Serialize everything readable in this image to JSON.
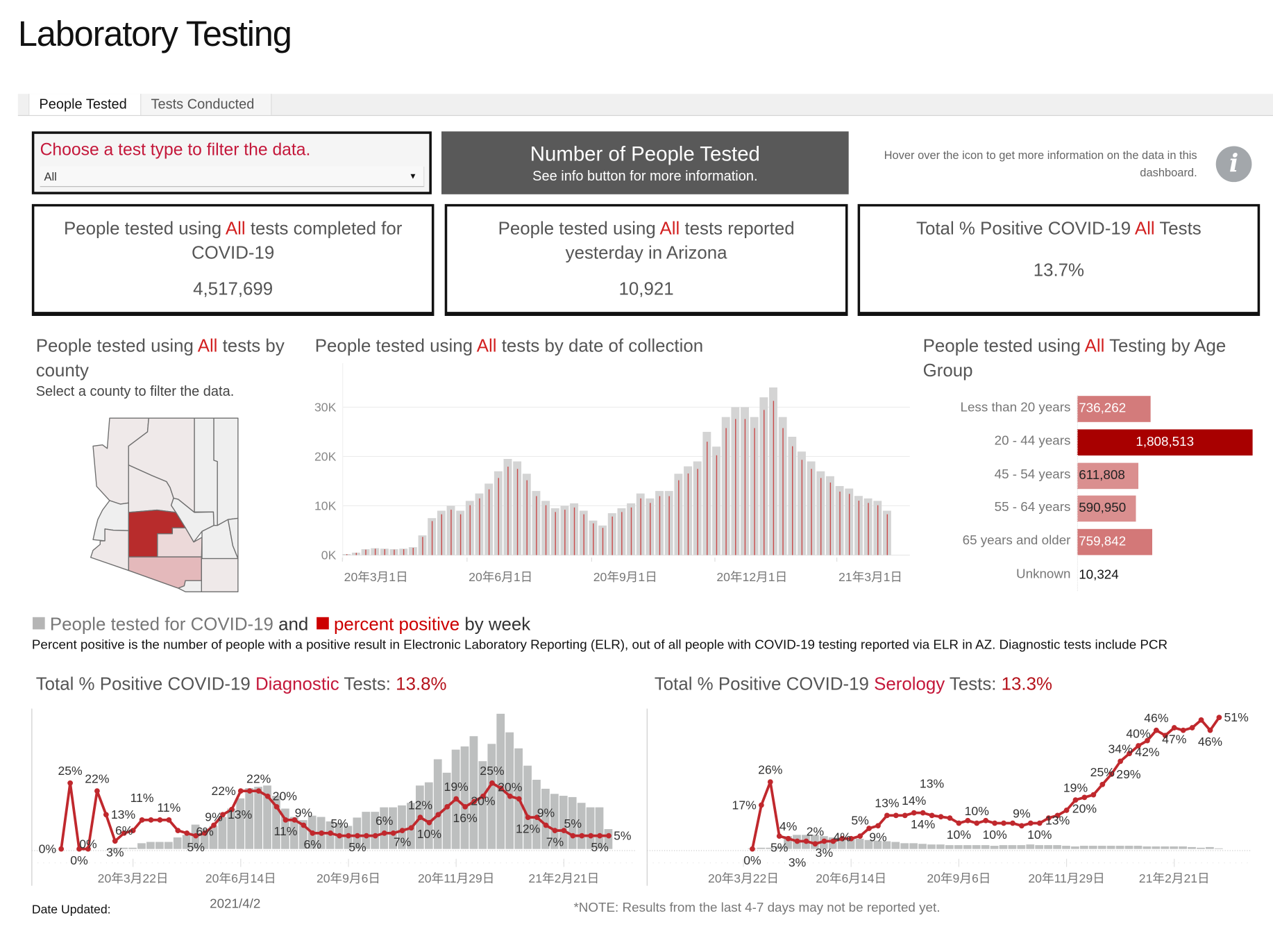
{
  "page": {
    "title": "Laboratory Testing"
  },
  "tabs": [
    {
      "label": "People Tested",
      "active": true
    },
    {
      "label": "Tests Conducted",
      "active": false
    }
  ],
  "filter": {
    "label": "Choose a test type to filter the data.",
    "value": "All"
  },
  "header_box": {
    "title": "Number of People Tested",
    "subtitle": "See info button for more information."
  },
  "info": {
    "hint": "Hover over the icon to get more information on the data in this dashboard.",
    "icon": "info-icon"
  },
  "kpis": [
    {
      "pre": "People tested using ",
      "hl": "All",
      "post": " tests completed for COVID-19",
      "value": "4,517,699"
    },
    {
      "pre": "People tested using ",
      "hl": "All",
      "post": " tests reported yesterday in Arizona",
      "value": "10,921"
    },
    {
      "pre": "Total % Positive COVID-19 ",
      "hl": "All",
      "post": " Tests",
      "value": "13.7%"
    }
  ],
  "county": {
    "pre": "People tested using ",
    "hl": "All",
    "post": " tests by county",
    "subtitle": "Select a county to filter the data.",
    "colors": {
      "Maricopa": "#b82c2c",
      "Pima": "#e4b9bb",
      "Pinal": "#ecd9d9",
      "other": "#efe9e9",
      "low": "#efefef"
    }
  },
  "daily": {
    "pre": "People tested using ",
    "hl": "All",
    "post": " tests by date of collection"
  },
  "age": {
    "pre": "People tested using ",
    "hl": "All",
    "post": " Testing by Age Group"
  },
  "weekly": {
    "legend_a": "People tested for COVID-19",
    "and": "and",
    "legend_b": "percent positive",
    "by_week": "by week",
    "description": "Percent positive is the number of people with a positive result in Electronic Laboratory Reporting (ELR), out of all people with COVID-19 testing reported via ELR in AZ. Diagnostic tests include PCR",
    "diag_title": {
      "pre": "Total % Positive COVID-19 ",
      "hl": "Diagnostic",
      "post": " Tests: ",
      "value": "13.8%"
    },
    "sero_title": {
      "pre": "Total % Positive COVID-19 ",
      "hl": "Serology",
      "post": " Tests: ",
      "value": "13.3%"
    }
  },
  "footer": {
    "date_label": "Date Updated:",
    "date": "2021/4/2",
    "note": "*NOTE: Results from the last 4-7 days may not be reported yet."
  },
  "colors": {
    "accent": "#d21f1f",
    "line": "#c0282d",
    "bar_gray": "#bdbfbf",
    "daily_bar": "#d4d4d4",
    "dark_box": "#595959"
  },
  "chart_data": [
    {
      "type": "bar",
      "title": "People tested using All tests by date of collection",
      "x_unit": "week starting 2020-03-01",
      "x_ticks": [
        "20年3月1日",
        "20年6月1日",
        "20年9月1日",
        "20年12月1日",
        "21年3月1日"
      ],
      "y_ticks": [
        "0K",
        "10K",
        "20K",
        "30K"
      ],
      "ylim": [
        0,
        37000
      ],
      "grid": true,
      "values_k": [
        0.2,
        0.5,
        1.2,
        1.4,
        1.3,
        1.2,
        1.3,
        1.6,
        4,
        7.5,
        9,
        10,
        9,
        11,
        12.5,
        14.5,
        17,
        19.5,
        19,
        16.5,
        13,
        11,
        9.5,
        10,
        10.5,
        9,
        7,
        6,
        8.5,
        9.5,
        10.5,
        12.5,
        11.5,
        13,
        13,
        16.5,
        18,
        19,
        25,
        22,
        28,
        30,
        30,
        28,
        32,
        34,
        28,
        24,
        21,
        19,
        17,
        16,
        14,
        13.5,
        12,
        11.5,
        11,
        9
      ]
    },
    {
      "type": "bar",
      "title": "People tested using All Testing by Age Group",
      "categories": [
        "Less than 20 years",
        "20 - 44 years",
        "45 - 54 years",
        "55 - 64 years",
        "65 years and older",
        "Unknown"
      ],
      "values": [
        736262,
        1808513,
        611808,
        590950,
        759842,
        10324
      ],
      "labels": [
        "736,262",
        "1,808,513",
        "611,808",
        "590,950",
        "759,842",
        "10,324"
      ],
      "colors": [
        "#d37b7b",
        "#a80000",
        "#da8f8f",
        "#da8f8f",
        "#d37878",
        "#ffffff"
      ],
      "label_colors": [
        "#ffffff",
        "#ffffff",
        "#222222",
        "#222222",
        "#ffffff",
        "#111111"
      ]
    },
    {
      "type": "bar+line",
      "title": "Total % Positive COVID-19 Diagnostic Tests: 13.8%",
      "x_unit": "week starting 2020-01-26",
      "x_ticks": [
        {
          "i": 8,
          "label": "20年3月22日"
        },
        {
          "i": 20,
          "label": "20年6月14日"
        },
        {
          "i": 32,
          "label": "20年9月6日"
        },
        {
          "i": 44,
          "label": "20年11月29日"
        },
        {
          "i": 56,
          "label": "21年2月21日"
        }
      ],
      "people_tested_k": [
        0,
        0,
        0,
        0,
        0,
        0,
        2,
        2,
        2,
        9,
        11,
        11,
        11,
        18,
        22,
        38,
        32,
        36,
        50,
        63,
        79,
        95,
        97,
        99,
        83,
        63,
        50,
        45,
        52,
        50,
        43,
        41,
        36,
        49,
        58,
        58,
        65,
        65,
        68,
        72,
        99,
        104,
        140,
        119,
        155,
        160,
        176,
        137,
        164,
        211,
        182,
        157,
        130,
        108,
        94,
        86,
        83,
        81,
        72,
        65,
        65,
        31
      ],
      "percent_positive": [
        0,
        25,
        0,
        0,
        22,
        13,
        3,
        6,
        7,
        11,
        11,
        11,
        11,
        7,
        6,
        5,
        6,
        9,
        13,
        15,
        22,
        22,
        22,
        20,
        16,
        11,
        11,
        9,
        6,
        6,
        6,
        5,
        5,
        5,
        5,
        5,
        6,
        6,
        7,
        8,
        12,
        10,
        13,
        16,
        19,
        16,
        18,
        20,
        25,
        23,
        20,
        19,
        12,
        12,
        9,
        7,
        7,
        5,
        5,
        5,
        5,
        5
      ],
      "labels": [
        {
          "i": 0,
          "p": "l"
        },
        {
          "i": 1,
          "p": "a"
        },
        {
          "i": 2,
          "p": "b"
        },
        {
          "i": 3,
          "p": "b"
        },
        {
          "i": 4,
          "p": "a"
        },
        {
          "i": 5,
          "p": "r"
        },
        {
          "i": 6,
          "p": "b"
        },
        {
          "i": 7,
          "p": "a"
        },
        {
          "i": 9,
          "p": "a"
        },
        {
          "i": 12,
          "p": "a"
        },
        {
          "i": 15,
          "p": "b"
        },
        {
          "i": 16,
          "p": "b"
        },
        {
          "i": 17,
          "p": "b"
        },
        {
          "i": 18,
          "p": "r"
        },
        {
          "i": 20,
          "p": "l"
        },
        {
          "i": 22,
          "p": "a"
        },
        {
          "i": 23,
          "p": "r"
        },
        {
          "i": 25,
          "p": "b"
        },
        {
          "i": 27,
          "p": "a"
        },
        {
          "i": 28,
          "p": "b"
        },
        {
          "i": 31,
          "p": "a"
        },
        {
          "i": 33,
          "p": "b"
        },
        {
          "i": 36,
          "p": "a"
        },
        {
          "i": 38,
          "p": "b"
        },
        {
          "i": 40,
          "p": "a"
        },
        {
          "i": 41,
          "p": "b"
        },
        {
          "i": 44,
          "p": "a"
        },
        {
          "i": 45,
          "p": "b"
        },
        {
          "i": 47,
          "p": "b"
        },
        {
          "i": 48,
          "p": "a"
        },
        {
          "i": 50,
          "p": "a"
        },
        {
          "i": 52,
          "p": "b"
        },
        {
          "i": 54,
          "p": "a"
        },
        {
          "i": 55,
          "p": "b"
        },
        {
          "i": 57,
          "p": "a"
        },
        {
          "i": 60,
          "p": "b"
        },
        {
          "i": 61,
          "p": "r"
        }
      ]
    },
    {
      "type": "bar+line",
      "title": "Total % Positive COVID-19 Serology Tests: 13.3%",
      "x_unit": "week starting 2020-01-26",
      "x_ticks": [
        {
          "i": 8,
          "label": "20年3月22日"
        },
        {
          "i": 20,
          "label": "20年6月14日"
        },
        {
          "i": 32,
          "label": "20年9月6日"
        },
        {
          "i": 44,
          "label": "20年11月29日"
        },
        {
          "i": 56,
          "label": "21年2月21日"
        }
      ],
      "start_index": 9,
      "people_tested_k": [
        1,
        2,
        2,
        4,
        20,
        22,
        22,
        22,
        20,
        18,
        18,
        18,
        16,
        14,
        13,
        12,
        11,
        9,
        9,
        8,
        7,
        7,
        6,
        6,
        6,
        6,
        6,
        5,
        6,
        6,
        6,
        7,
        6,
        6,
        6,
        5,
        4,
        5,
        5,
        5,
        5,
        5,
        5,
        5,
        4,
        4,
        4,
        4,
        4,
        3,
        2,
        3,
        1
      ],
      "percent_positive": [
        0,
        17,
        26,
        5,
        4,
        3,
        3,
        2,
        3,
        3,
        4,
        4,
        5,
        8,
        9,
        13,
        13,
        13,
        14,
        14,
        13,
        12.5,
        12,
        10,
        11,
        10,
        11,
        10,
        10,
        10,
        9,
        10,
        10,
        12,
        13,
        15,
        19,
        20,
        21,
        25,
        29,
        34,
        37,
        40,
        42,
        46,
        44,
        47,
        46,
        47,
        50,
        46,
        51
      ],
      "labels": [
        {
          "i": 9,
          "p": "b"
        },
        {
          "i": 10,
          "p": "l"
        },
        {
          "i": 11,
          "p": "a"
        },
        {
          "i": 12,
          "p": "b"
        },
        {
          "i": 13,
          "p": "a"
        },
        {
          "i": 14,
          "p": "b"
        },
        {
          "i": 16,
          "p": "a"
        },
        {
          "i": 17,
          "p": "b"
        },
        {
          "i": 19,
          "p": "b"
        },
        {
          "i": 21,
          "p": "a"
        },
        {
          "i": 23,
          "p": "b"
        },
        {
          "i": 24,
          "p": "a"
        },
        {
          "i": 27,
          "p": "a"
        },
        {
          "i": 28,
          "p": "b"
        },
        {
          "i": 29,
          "p": "a"
        },
        {
          "i": 32,
          "p": "b"
        },
        {
          "i": 34,
          "p": "a"
        },
        {
          "i": 36,
          "p": "b"
        },
        {
          "i": 39,
          "p": "a"
        },
        {
          "i": 41,
          "p": "b"
        },
        {
          "i": 43,
          "p": "b"
        },
        {
          "i": 45,
          "p": "a"
        },
        {
          "i": 46,
          "p": "b"
        },
        {
          "i": 48,
          "p": "a"
        },
        {
          "i": 49,
          "p": "r"
        },
        {
          "i": 50,
          "p": "a"
        },
        {
          "i": 52,
          "p": "a"
        },
        {
          "i": 53,
          "p": "b"
        },
        {
          "i": 54,
          "p": "a"
        },
        {
          "i": 56,
          "p": "b"
        },
        {
          "i": 60,
          "p": "b"
        },
        {
          "i": 61,
          "p": "r"
        }
      ]
    }
  ]
}
